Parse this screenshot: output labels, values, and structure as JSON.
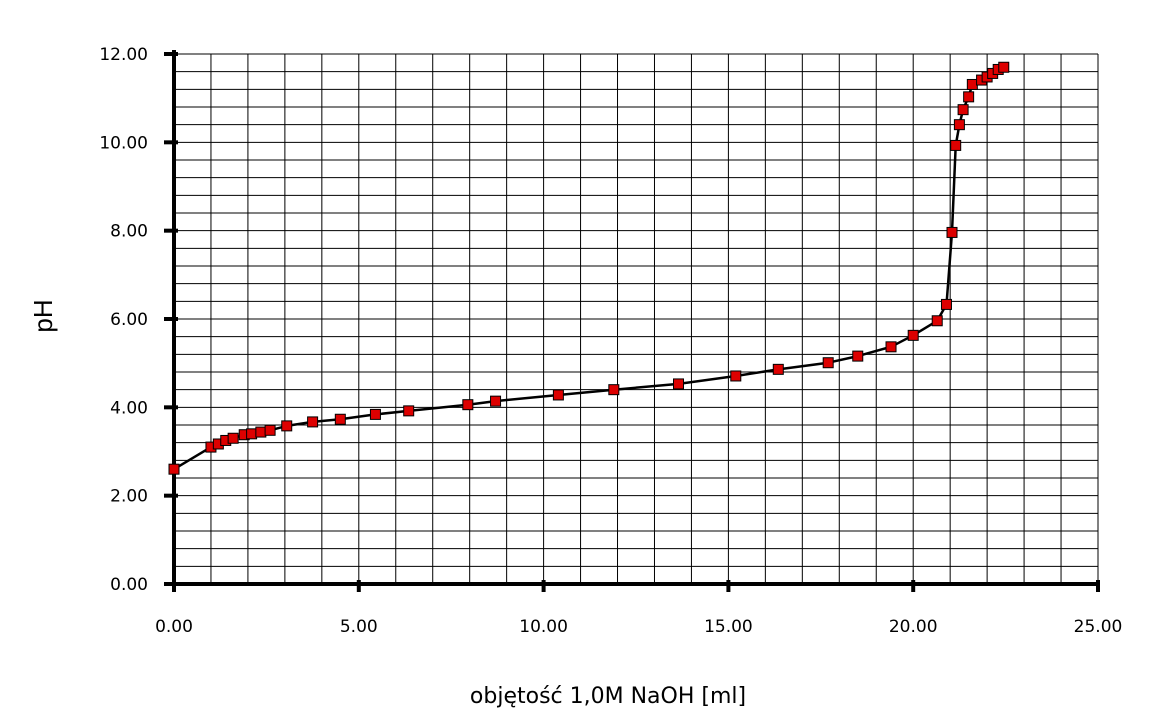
{
  "chart_data": {
    "type": "scatter",
    "xlabel": "objętość 1,0M NaOH [ml]",
    "ylabel": "pH",
    "xlim": [
      0,
      25
    ],
    "ylim": [
      0,
      12
    ],
    "x_ticks": [
      "0.00",
      "5.00",
      "10.00",
      "15.00",
      "20.00",
      "25.00"
    ],
    "y_ticks": [
      "0.00",
      "2.00",
      "4.00",
      "6.00",
      "8.00",
      "10.00",
      "12.00"
    ],
    "grid": true,
    "marker_color": "#dd0000",
    "line_color": "#000000",
    "series": [
      {
        "x": [
          0.0,
          1.0,
          1.2,
          1.4,
          1.6,
          1.9,
          2.1,
          2.35,
          2.6,
          3.05,
          3.75,
          4.5,
          5.45,
          6.35,
          7.95,
          8.7,
          10.4,
          11.9,
          13.65,
          15.2,
          16.35,
          17.7,
          18.5,
          19.4,
          20.0,
          20.65,
          20.9,
          21.05,
          21.15,
          21.25,
          21.35,
          21.5,
          21.6,
          21.85,
          22.0,
          22.15,
          22.3,
          22.45
        ],
        "y": [
          2.6,
          3.1,
          3.17,
          3.25,
          3.3,
          3.38,
          3.4,
          3.44,
          3.48,
          3.58,
          3.67,
          3.73,
          3.84,
          3.92,
          4.06,
          4.14,
          4.28,
          4.4,
          4.53,
          4.71,
          4.86,
          5.01,
          5.16,
          5.37,
          5.63,
          5.96,
          6.33,
          7.96,
          9.93,
          10.4,
          10.74,
          11.03,
          11.31,
          11.41,
          11.48,
          11.56,
          11.65,
          11.7
        ]
      }
    ]
  }
}
